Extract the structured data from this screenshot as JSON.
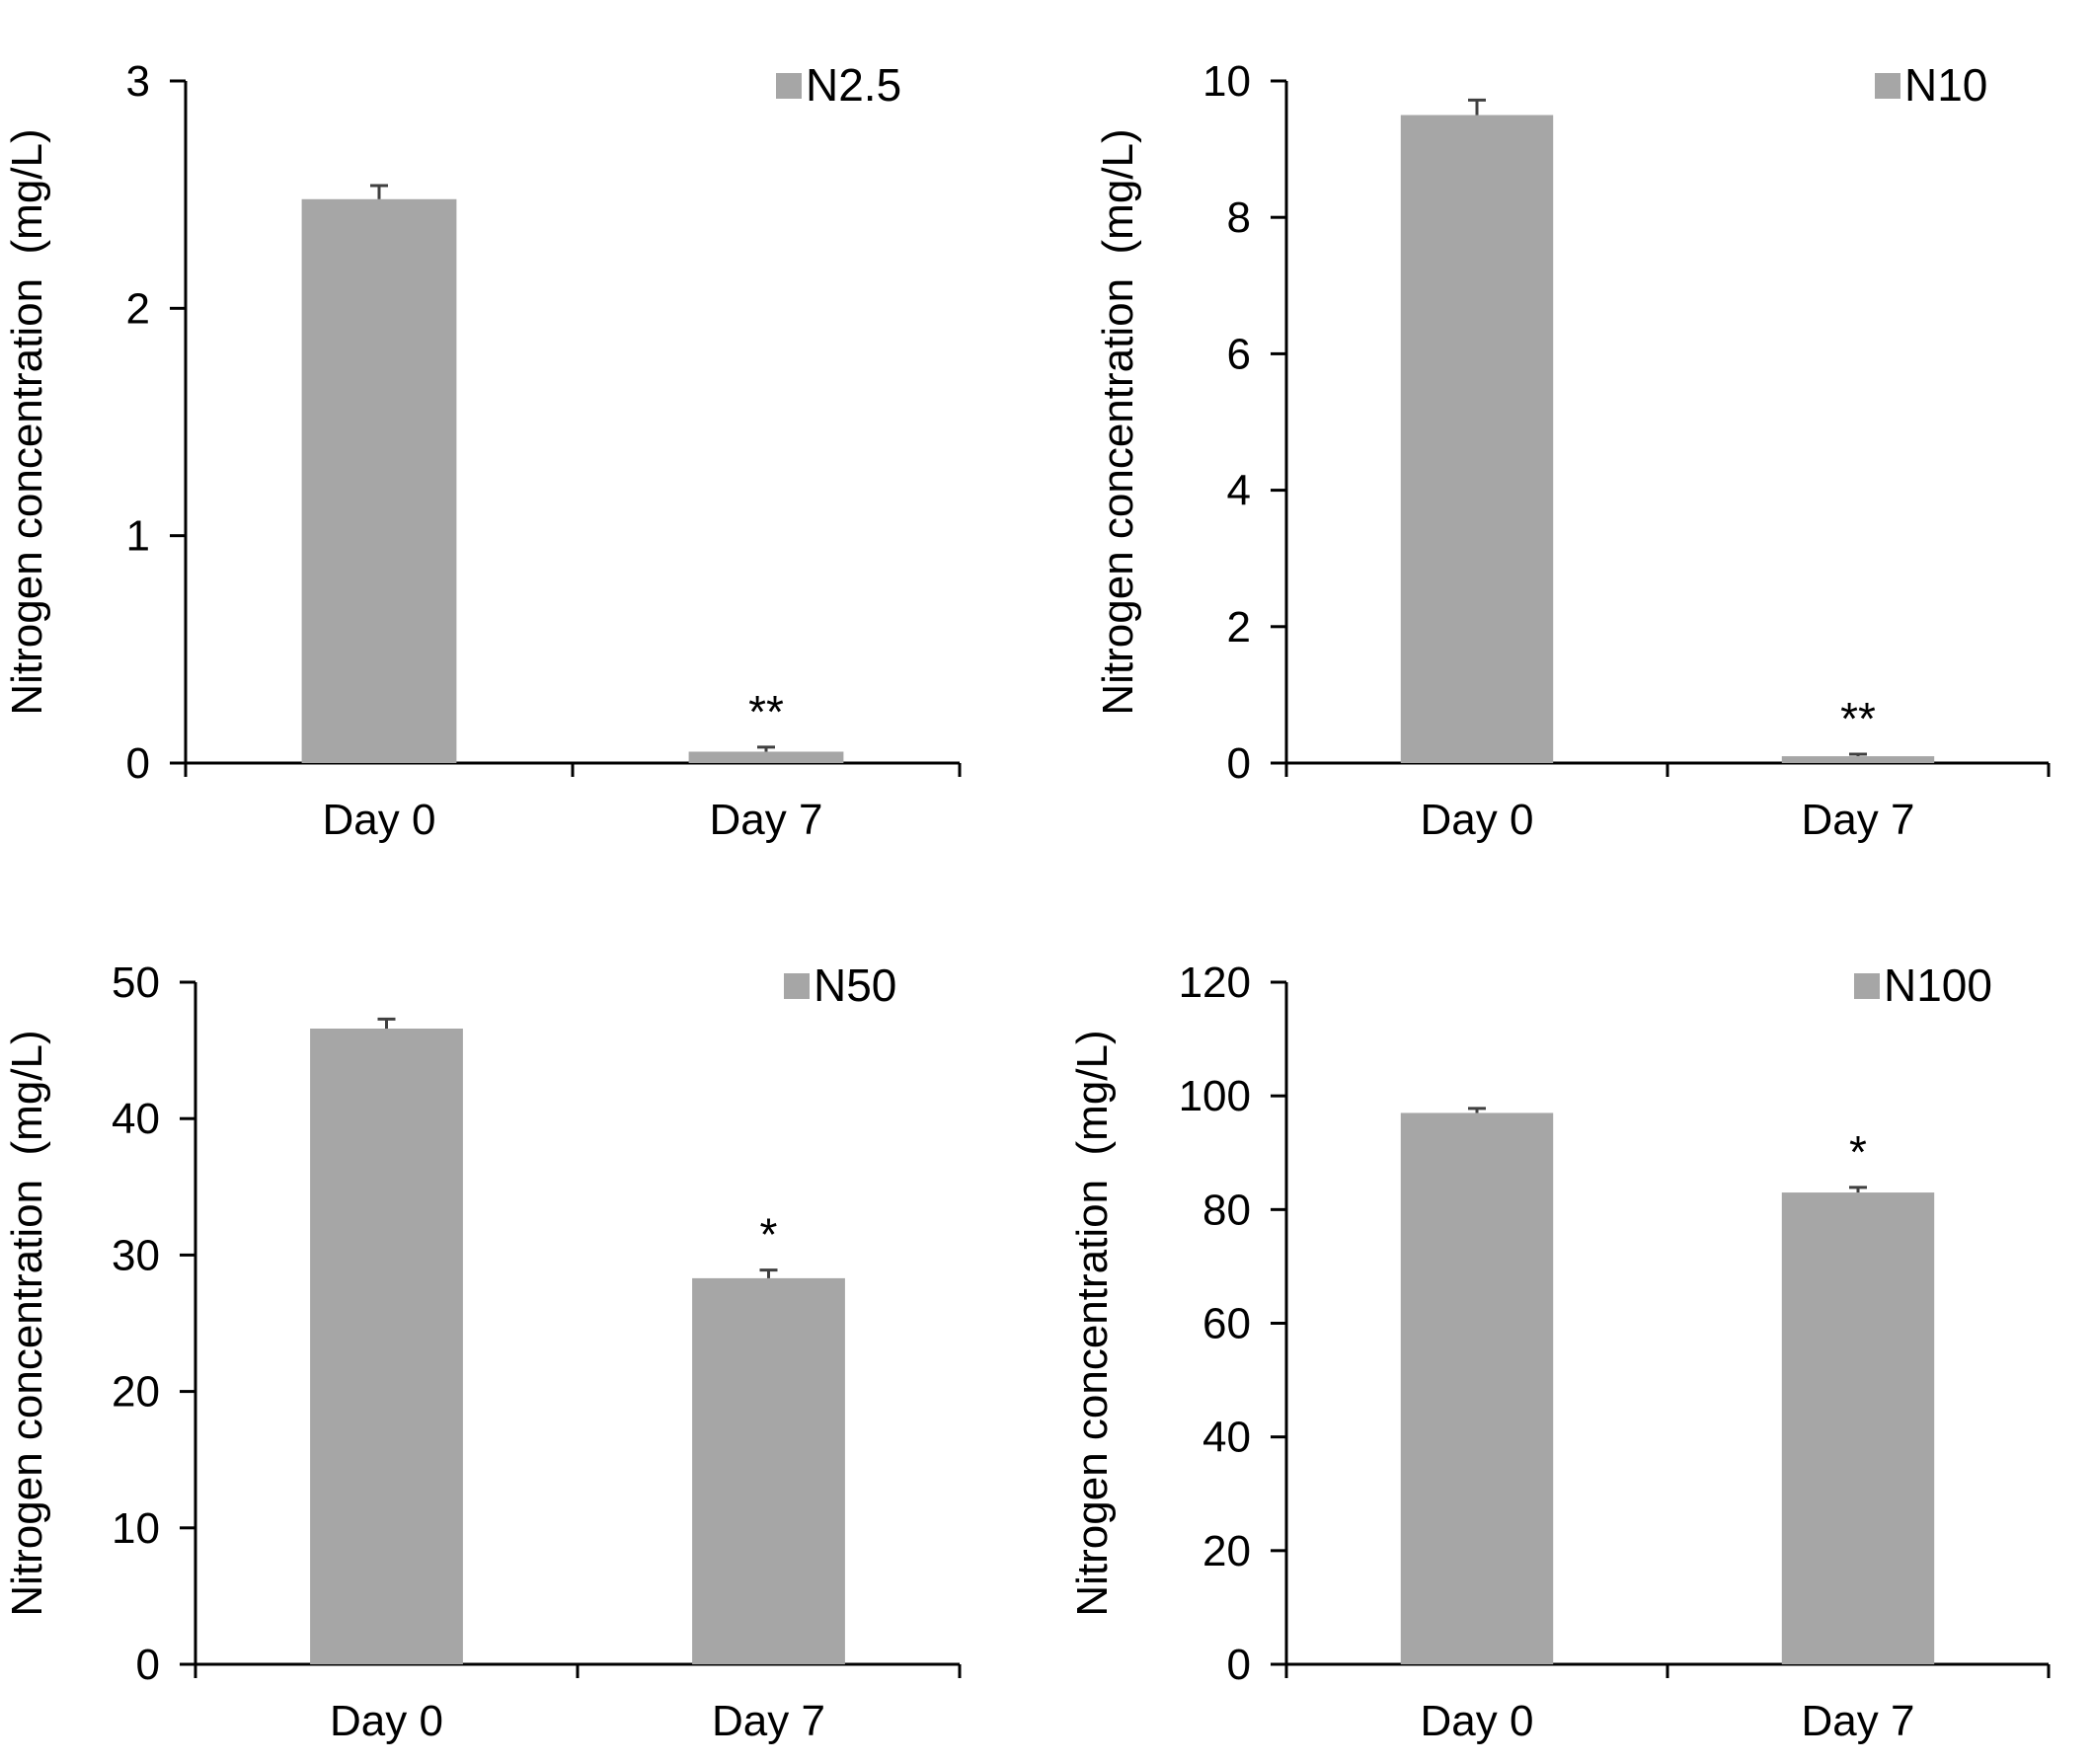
{
  "figure_title": "",
  "chart_data": [
    {
      "type": "bar",
      "legend": "N2.5",
      "legend_position": "top-right",
      "categories": [
        "Day 0",
        "Day 7"
      ],
      "values": [
        2.48,
        0.05
      ],
      "errors": [
        0.06,
        0.02
      ],
      "significance": [
        "",
        "**"
      ],
      "ylabel": "Nitrogen concentration  (mg/L)",
      "ylim": [
        0,
        3
      ],
      "yticks": [
        0,
        1,
        2,
        3
      ],
      "ytick_labels": [
        "0",
        "1",
        "2",
        "3"
      ],
      "bar_color": "#a6a6a6",
      "grid": false
    },
    {
      "type": "bar",
      "legend": "N10",
      "legend_position": "top-right",
      "categories": [
        "Day 0",
        "Day 7"
      ],
      "values": [
        9.5,
        0.1
      ],
      "errors": [
        0.22,
        0.03
      ],
      "significance": [
        "",
        "**"
      ],
      "ylabel": "Nitrogen concentration  (mg/L)",
      "ylim": [
        0,
        10
      ],
      "yticks": [
        0,
        2,
        4,
        6,
        8,
        10
      ],
      "ytick_labels": [
        "0",
        "2",
        "4",
        "6",
        "8",
        "10"
      ],
      "bar_color": "#a6a6a6",
      "grid": false
    },
    {
      "type": "bar",
      "legend": "N50",
      "legend_position": "top-right",
      "categories": [
        "Day 0",
        "Day 7"
      ],
      "values": [
        46.6,
        28.3
      ],
      "errors": [
        0.7,
        0.6
      ],
      "significance": [
        "",
        "*"
      ],
      "ylabel": "Nitrogen concentration  (mg/L)",
      "ylim": [
        0,
        50
      ],
      "yticks": [
        0,
        10,
        20,
        30,
        40,
        50
      ],
      "ytick_labels": [
        "0",
        "10",
        "20",
        "30",
        "40",
        "50"
      ],
      "bar_color": "#a6a6a6",
      "grid": false
    },
    {
      "type": "bar",
      "legend": "N100",
      "legend_position": "top-right",
      "categories": [
        "Day 0",
        "Day 7"
      ],
      "values": [
        97.0,
        83.0
      ],
      "errors": [
        0.8,
        0.9
      ],
      "significance": [
        "",
        "*"
      ],
      "ylabel": "Nitrogen concentration  (mg/L)",
      "ylim": [
        0,
        120
      ],
      "yticks": [
        0,
        20,
        40,
        60,
        80,
        100,
        120
      ],
      "ytick_labels": [
        "0",
        "20",
        "40",
        "60",
        "80",
        "100",
        "120"
      ],
      "bar_color": "#a6a6a6",
      "grid": false
    }
  ]
}
